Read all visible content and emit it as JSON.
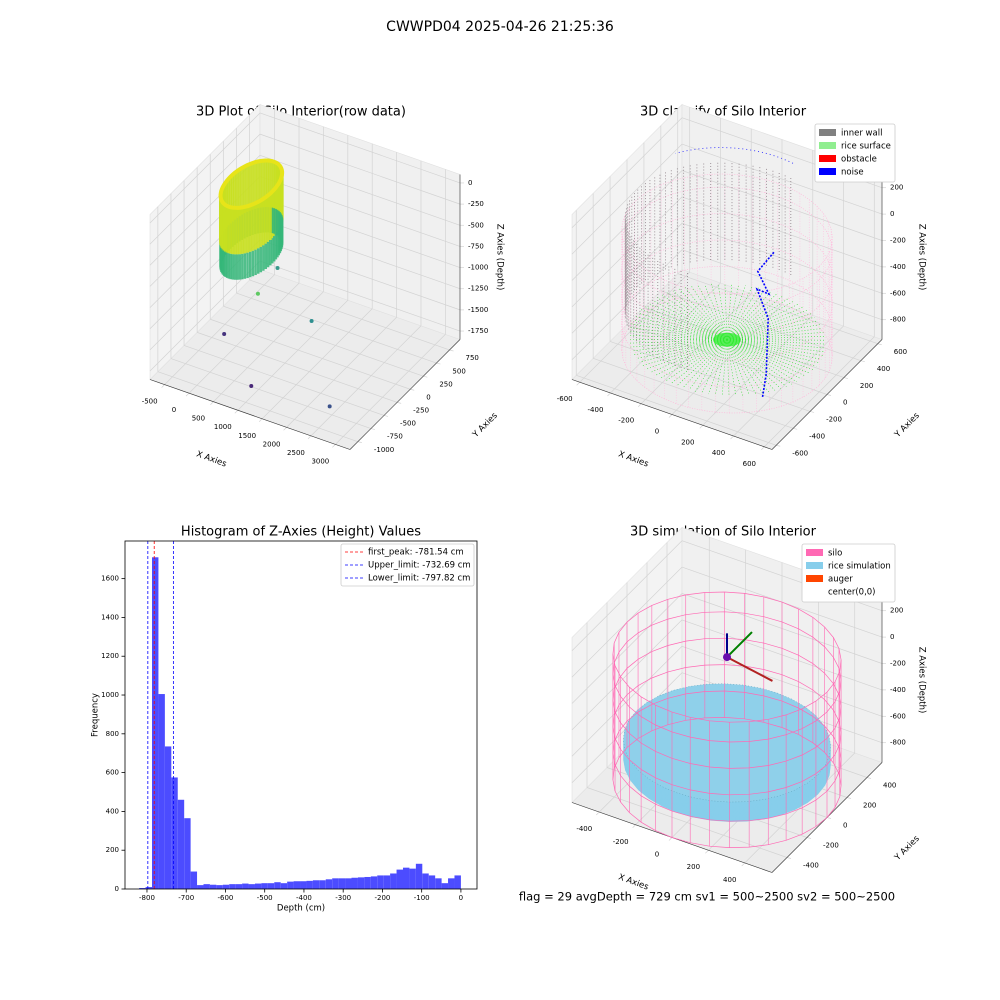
{
  "title": "CWWPD04 2025-04-26 21:25:36",
  "status_text": "flag = 29  avgDepth = 729 cm  sv1 = 500~2500  sv2 = 500~2500",
  "chart_data": [
    {
      "type": "scatter3d",
      "title": "3D Plot of Silo Interior(row data)",
      "x_label": "X Axies",
      "y_label": "Y Axies",
      "z_label": "Z Axies (Depth)",
      "xlim": [
        -800,
        3300
      ],
      "ylim": [
        -1150,
        950
      ],
      "zlim": [
        -1850,
        100
      ],
      "xticks": [
        -500,
        0,
        500,
        1000,
        1500,
        2000,
        2500,
        3000
      ],
      "yticks": [
        -1000,
        -750,
        -500,
        -250,
        0,
        250,
        500,
        750
      ],
      "zticks": [
        -1750,
        -1500,
        -1250,
        -1000,
        -750,
        -500,
        -250,
        0
      ]
    },
    {
      "type": "scatter3d",
      "title": "3D classify of Silo Interior",
      "x_label": "X Axies",
      "y_label": "Y Axies",
      "z_label": "Z Axies (Depth)",
      "xlim": [
        -650,
        650
      ],
      "ylim": [
        -650,
        650
      ],
      "zlim": [
        -950,
        300
      ],
      "xticks": [
        -600,
        -400,
        -200,
        0,
        200,
        400,
        600
      ],
      "yticks": [
        -600,
        -400,
        -200,
        0,
        200,
        400,
        600
      ],
      "zticks": [
        -800,
        -600,
        -400,
        -200,
        0,
        200
      ],
      "legend": [
        {
          "name": "inner wall",
          "color": "#808080"
        },
        {
          "name": "rice surface",
          "color": "#90ee90"
        },
        {
          "name": "obstacle",
          "color": "#ff0000"
        },
        {
          "name": "noise",
          "color": "#0000ff"
        }
      ]
    },
    {
      "type": "histogram",
      "title": "Histogram of Z-Axies (Height) Values",
      "x_label": "Depth (cm)",
      "y_label": "Frequency",
      "color": "#4c4cff",
      "bins": [
        -820,
        -803.6,
        -787.2,
        -770.8,
        -754.4,
        -738,
        -721.6,
        -705.2,
        -688.8,
        -672.4,
        -656,
        -639.6,
        -623.2,
        -606.8,
        -590.4,
        -574,
        -557.6,
        -541.2,
        -524.8,
        -508.4,
        -492,
        -475.6,
        -459.2,
        -442.8,
        -426.4,
        -410,
        -393.6,
        -377.2,
        -360.8,
        -344.4,
        -328,
        -311.6,
        -295.2,
        -278.8,
        -262.4,
        -246,
        -229.6,
        -213.2,
        -196.8,
        -180.4,
        -164,
        -147.6,
        -131.2,
        -114.8,
        -98.4,
        -82,
        -65.6,
        -49.2,
        -32.8,
        -16.4,
        0
      ],
      "values": [
        5,
        10,
        1710,
        1005,
        735,
        575,
        460,
        365,
        90,
        20,
        25,
        22,
        20,
        22,
        25,
        25,
        28,
        25,
        28,
        30,
        30,
        35,
        30,
        38,
        40,
        40,
        42,
        45,
        45,
        50,
        55,
        55,
        55,
        58,
        60,
        62,
        65,
        70,
        70,
        80,
        100,
        110,
        105,
        130,
        80,
        70,
        55,
        30,
        55,
        70
      ],
      "xlim": [
        -856,
        41
      ],
      "ylim": [
        0,
        1794
      ],
      "xticks": [
        -800,
        -700,
        -600,
        -500,
        -400,
        -300,
        -200,
        -100,
        0
      ],
      "yticks": [
        0,
        200,
        400,
        600,
        800,
        1000,
        1200,
        1400,
        1600
      ],
      "reference_lines": [
        {
          "label": "first_peak: -781.54 cm",
          "value": -781.54,
          "color": "#ff0000"
        },
        {
          "label": "Upper_limit: -732.69 cm",
          "value": -732.69,
          "color": "#0000ff"
        },
        {
          "label": "Lower_limit: -797.82 cm",
          "value": -797.82,
          "color": "#0000ff"
        }
      ]
    },
    {
      "type": "scatter3d",
      "title": "3D simulation of Silo Interior",
      "x_label": "X Axies",
      "y_label": "Y Axies",
      "z_label": "Z Axies (Depth)",
      "xlim": [
        -550,
        550
      ],
      "ylim": [
        -550,
        550
      ],
      "zlim": [
        -950,
        300
      ],
      "xticks": [
        -400,
        -200,
        0,
        200,
        400
      ],
      "yticks": [
        -400,
        -200,
        0,
        200,
        400
      ],
      "zticks": [
        -800,
        -600,
        -400,
        -200,
        0,
        200
      ],
      "legend": [
        {
          "name": "silo",
          "color": "#ff69b4"
        },
        {
          "name": "rice simulation",
          "color": "#87ceeb"
        },
        {
          "name": "auger",
          "color": "#ff4500"
        },
        {
          "name": "center(0,0)",
          "color": "#ffffff"
        }
      ]
    }
  ]
}
